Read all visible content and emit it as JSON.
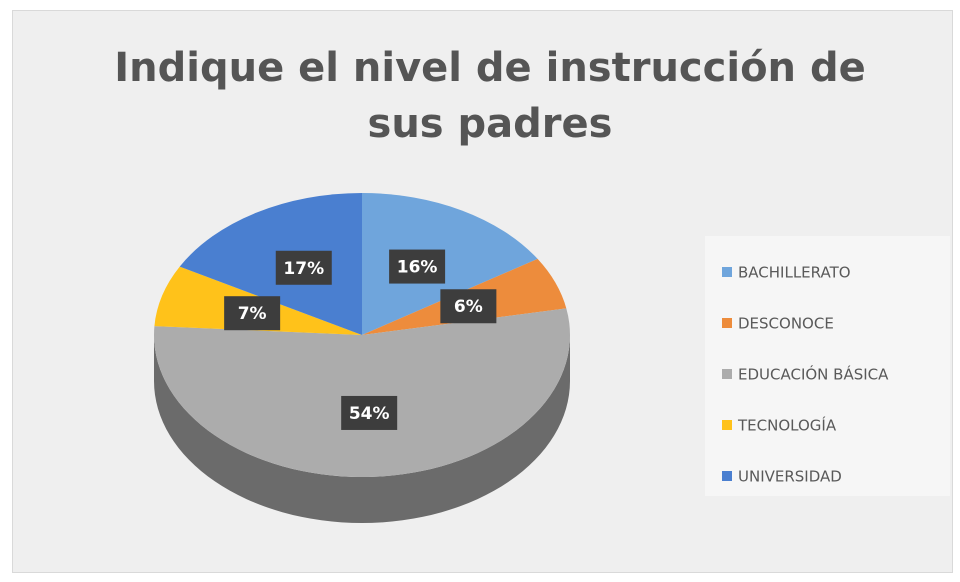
{
  "chart_data": {
    "type": "pie",
    "title": "Indique el nivel de instrucción de sus padres",
    "categories": [
      "BACHILLERATO",
      "DESCONOCE",
      "EDUCACIÓN BÁSICA",
      "TECNOLOGÍA",
      "UNIVERSIDAD"
    ],
    "values": [
      16,
      6,
      54,
      7,
      17
    ],
    "value_labels": [
      "16%",
      "6%",
      "54%",
      "7%",
      "17%"
    ],
    "colors": [
      "#6fa5dc",
      "#ed8c3c",
      "#acacac",
      "#ffc21a",
      "#4a7fd0"
    ],
    "legend": "right"
  }
}
